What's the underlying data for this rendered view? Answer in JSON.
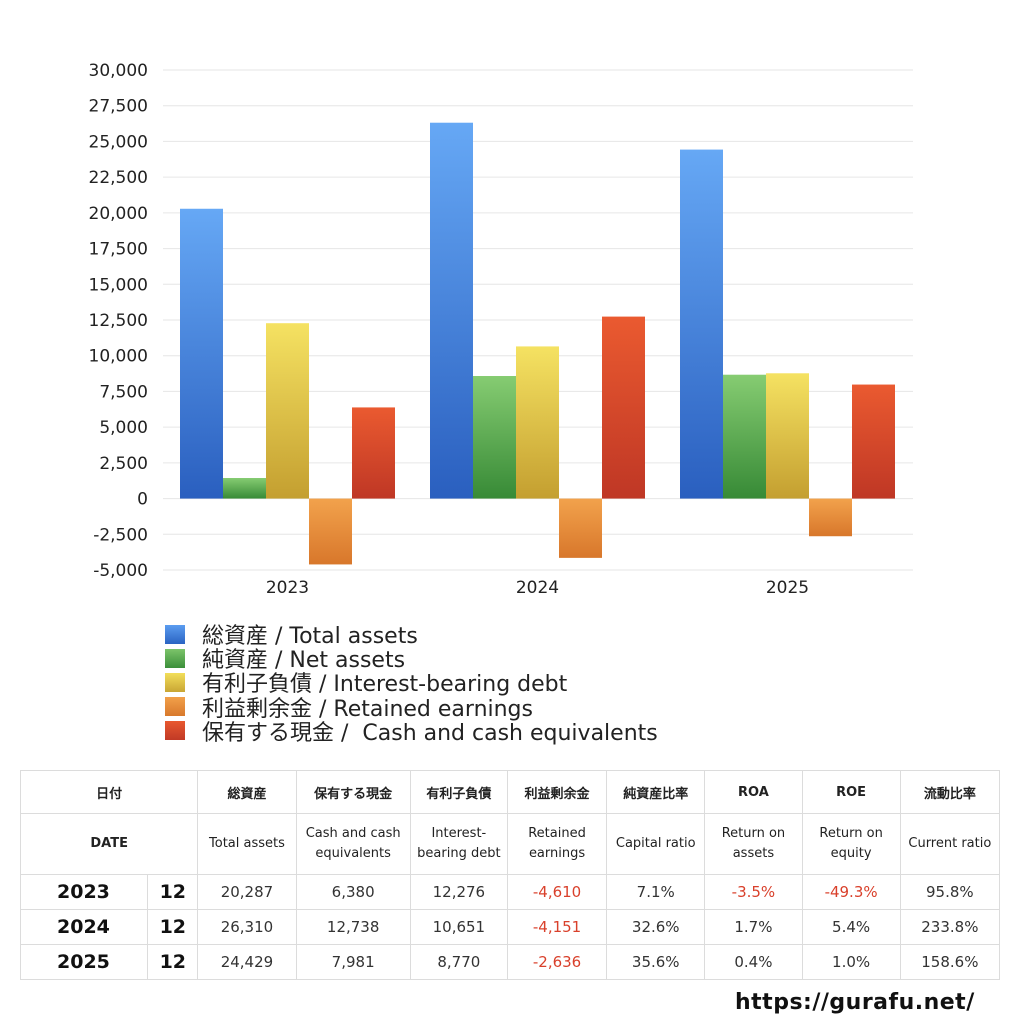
{
  "chart_data": {
    "type": "bar",
    "categories": [
      "2023",
      "2024",
      "2025"
    ],
    "series": [
      {
        "name": "総資産 / Total assets",
        "color": "#3f7fdc",
        "values": [
          20287,
          26310,
          24429
        ]
      },
      {
        "name": "純資産 / Net assets",
        "color": "#4ea447",
        "values": [
          1440,
          8580,
          8670
        ]
      },
      {
        "name": "有利子負債 / Interest-bearing debt",
        "color": "#e2c63d",
        "values": [
          12276,
          10651,
          8770
        ]
      },
      {
        "name": "利益剰余金 / Retained earnings",
        "color": "#e8903d",
        "values": [
          -4610,
          -4151,
          -2636
        ]
      },
      {
        "name": "保有する現金 /  Cash and cash equivalents",
        "color": "#d9452d",
        "values": [
          6380,
          12738,
          7981
        ]
      }
    ],
    "ylim": [
      -5000,
      30000
    ],
    "yticks": [
      "30,000",
      "27,500",
      "25,000",
      "22,500",
      "20,000",
      "17,500",
      "15,000",
      "12,500",
      "10,000",
      "7,500",
      "5,000",
      "2,500",
      "0",
      "-2,500",
      "-5,000"
    ],
    "grid": true,
    "legend": "bottom"
  },
  "table": {
    "header_jp": [
      "日付",
      "総資産",
      "保有する現金",
      "有利子負債",
      "利益剰余金",
      "純資産比率",
      "ROA",
      "ROE",
      "流動比率"
    ],
    "header_en": [
      "DATE",
      "Total assets",
      "Cash and cash equivalents",
      "Interest-bearing debt",
      "Retained earnings",
      "Capital ratio",
      "Return on assets",
      "Return on equity",
      "Current ratio"
    ],
    "rows": [
      {
        "year": "2023",
        "month": "12",
        "total_assets": "20,287",
        "cash": "6,380",
        "debt": "12,276",
        "retained": "-4,610",
        "capital_ratio": "7.1%",
        "roa": "-3.5%",
        "roe": "-49.3%",
        "current_ratio": "95.8%"
      },
      {
        "year": "2024",
        "month": "12",
        "total_assets": "26,310",
        "cash": "12,738",
        "debt": "10,651",
        "retained": "-4,151",
        "capital_ratio": "32.6%",
        "roa": "1.7%",
        "roe": "5.4%",
        "current_ratio": "233.8%"
      },
      {
        "year": "2025",
        "month": "12",
        "total_assets": "24,429",
        "cash": "7,981",
        "debt": "8,770",
        "retained": "-2,636",
        "capital_ratio": "35.6%",
        "roa": "0.4%",
        "roe": "1.0%",
        "current_ratio": "158.6%"
      }
    ]
  },
  "credit": "https://gurafu.net/"
}
